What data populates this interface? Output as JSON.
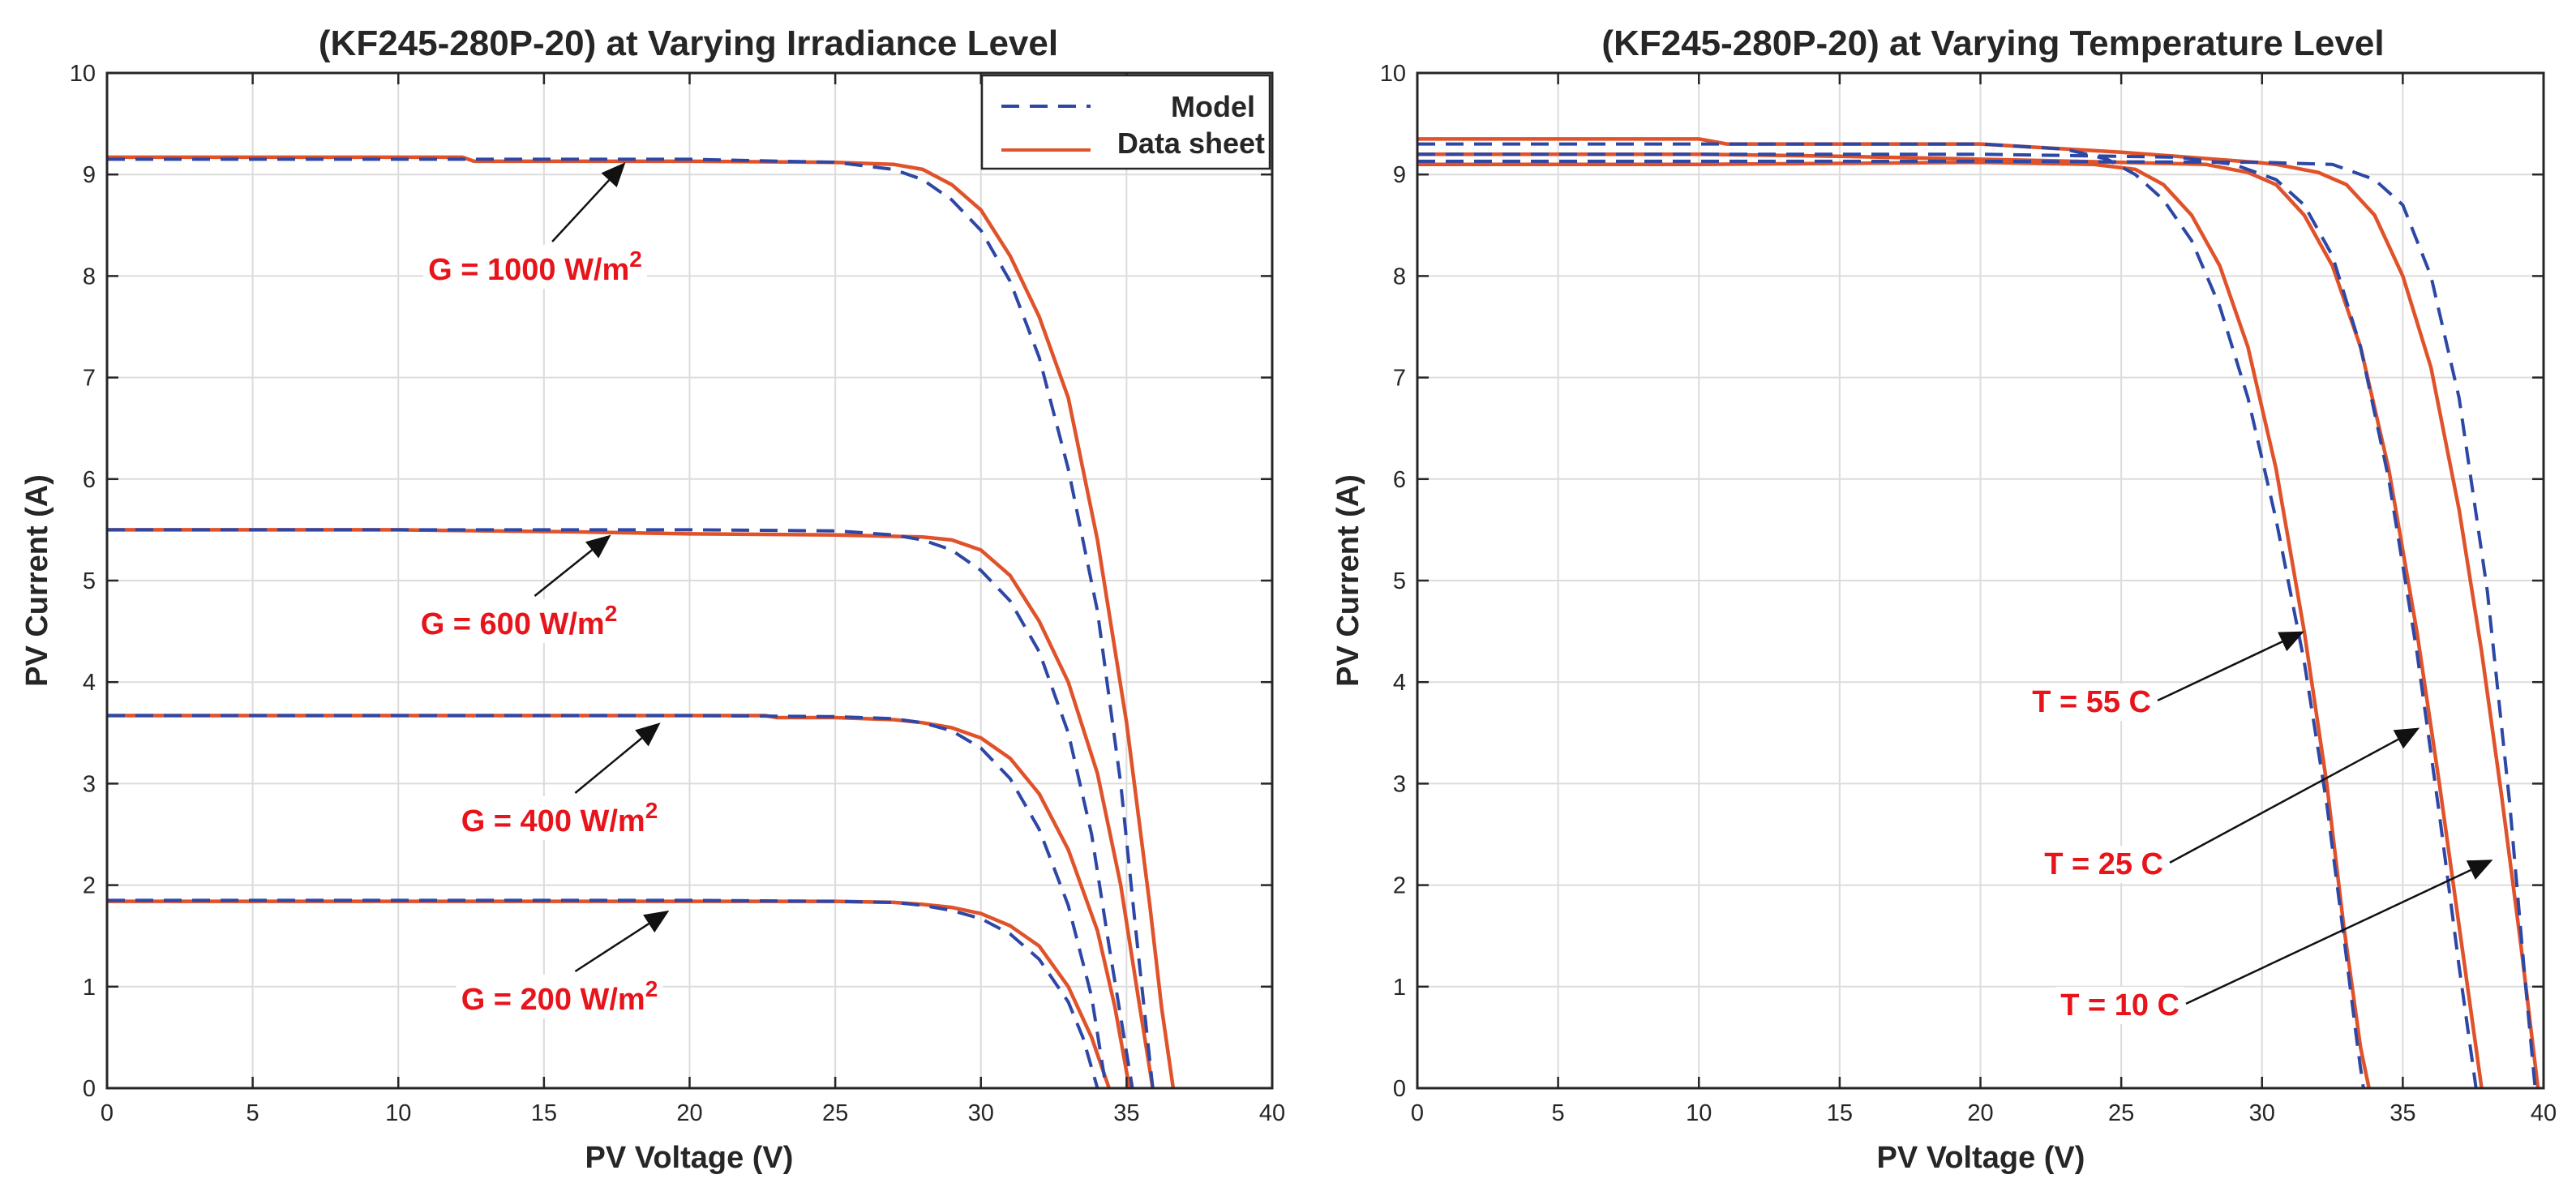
{
  "colors": {
    "model": "#2d47a6",
    "datasheet": "#e0522a",
    "annotation": "#e8141b",
    "axis": "#262626",
    "grid": "#dcdcdc"
  },
  "chart_data": [
    {
      "type": "line",
      "title": "(KF245-280P-20) at Varying Irradiance Level",
      "xlabel": "PV Voltage (V)",
      "ylabel": "PV Current (A)",
      "xlim": [
        0,
        40
      ],
      "ylim": [
        0,
        10
      ],
      "xticks": [
        "0",
        "5",
        "10",
        "15",
        "20",
        "25",
        "30",
        "35",
        "40"
      ],
      "yticks": [
        "0",
        "1",
        "2",
        "3",
        "4",
        "5",
        "6",
        "7",
        "8",
        "9",
        "10"
      ],
      "grid": true,
      "legend": {
        "placement": "top-right",
        "entries": [
          "Model",
          "Data sheet"
        ]
      },
      "annotations": [
        {
          "text": "G = 1000 W/m",
          "sup": "2",
          "target": [
            17.8,
            9.12
          ]
        },
        {
          "text": "G = 600 W/m",
          "sup": "2",
          "target": [
            17.3,
            5.45
          ]
        },
        {
          "text": "G = 400 W/m",
          "sup": "2",
          "target": [
            19.0,
            3.6
          ]
        },
        {
          "text": "G = 200 W/m",
          "sup": "2",
          "target": [
            19.3,
            1.75
          ]
        }
      ],
      "series": [
        {
          "group": "Model",
          "style": "dashed",
          "x": [
            0,
            10,
            20,
            25,
            27,
            28,
            29,
            30,
            31,
            32,
            33,
            34,
            34.8,
            35.3,
            35.9
          ],
          "y": [
            9.15,
            9.15,
            9.15,
            9.12,
            9.05,
            8.95,
            8.75,
            8.45,
            7.95,
            7.2,
            6.1,
            4.7,
            3.0,
            1.6,
            0
          ]
        },
        {
          "group": "Data sheet",
          "style": "solid",
          "x": [
            0,
            10,
            12.2,
            12.6,
            20,
            25,
            27,
            28,
            29,
            30,
            31,
            32,
            33,
            34,
            35,
            35.8,
            36.2,
            36.6
          ],
          "y": [
            9.17,
            9.17,
            9.17,
            9.13,
            9.13,
            9.12,
            9.1,
            9.05,
            8.9,
            8.65,
            8.2,
            7.6,
            6.8,
            5.4,
            3.6,
            1.8,
            0.8,
            0
          ]
        },
        {
          "group": "Model",
          "style": "dashed",
          "x": [
            0,
            10,
            20,
            25,
            27,
            28,
            29,
            30,
            31,
            32,
            33,
            33.8,
            34.4,
            35.2
          ],
          "y": [
            5.5,
            5.5,
            5.5,
            5.49,
            5.45,
            5.4,
            5.3,
            5.1,
            4.8,
            4.3,
            3.5,
            2.5,
            1.4,
            0
          ]
        },
        {
          "group": "Data sheet",
          "style": "solid",
          "x": [
            0,
            10,
            16,
            20,
            25,
            28,
            29,
            30,
            31,
            32,
            33,
            34,
            34.8,
            35.4,
            35.9
          ],
          "y": [
            5.5,
            5.5,
            5.48,
            5.46,
            5.45,
            5.43,
            5.4,
            5.3,
            5.05,
            4.6,
            4.0,
            3.1,
            2.0,
            0.9,
            0
          ]
        },
        {
          "group": "Model",
          "style": "dashed",
          "x": [
            0,
            10,
            20,
            25,
            27,
            28,
            29,
            30,
            31,
            32,
            33,
            33.8,
            34.3
          ],
          "y": [
            3.67,
            3.67,
            3.67,
            3.66,
            3.64,
            3.6,
            3.52,
            3.35,
            3.05,
            2.55,
            1.8,
            0.9,
            0
          ]
        },
        {
          "group": "Data sheet",
          "style": "solid",
          "x": [
            0,
            10,
            20,
            22.6,
            23,
            25,
            27,
            28,
            29,
            30,
            31,
            32,
            33,
            34,
            34.6,
            35.1
          ],
          "y": [
            3.67,
            3.67,
            3.67,
            3.67,
            3.65,
            3.65,
            3.63,
            3.6,
            3.55,
            3.45,
            3.25,
            2.9,
            2.35,
            1.55,
            0.8,
            0
          ]
        },
        {
          "group": "Model",
          "style": "dashed",
          "x": [
            0,
            10,
            20,
            25,
            27,
            28,
            29,
            30,
            31,
            32,
            33,
            33.5,
            34.0
          ],
          "y": [
            1.85,
            1.85,
            1.85,
            1.84,
            1.83,
            1.8,
            1.75,
            1.67,
            1.52,
            1.27,
            0.85,
            0.5,
            0
          ]
        },
        {
          "group": "Data sheet",
          "style": "solid",
          "x": [
            0,
            10,
            20,
            25,
            27,
            28,
            29,
            30,
            31,
            32,
            33,
            33.8,
            34.4
          ],
          "y": [
            1.84,
            1.84,
            1.84,
            1.84,
            1.83,
            1.81,
            1.78,
            1.72,
            1.6,
            1.4,
            1.0,
            0.5,
            0
          ]
        }
      ]
    },
    {
      "type": "line",
      "title": "(KF245-280P-20) at Varying Temperature Level",
      "xlabel": "PV Voltage (V)",
      "ylabel": "PV Current (A)",
      "xlim": [
        0,
        40
      ],
      "ylim": [
        0,
        10
      ],
      "xticks": [
        "0",
        "5",
        "10",
        "15",
        "20",
        "25",
        "30",
        "35",
        "40"
      ],
      "yticks": [
        "0",
        "1",
        "2",
        "3",
        "4",
        "5",
        "6",
        "7",
        "8",
        "9",
        "10"
      ],
      "grid": true,
      "annotations": [
        {
          "text": "T = 55 C",
          "target": [
            31.5,
            4.5
          ]
        },
        {
          "text": "T = 25 C",
          "target": [
            35.6,
            3.55
          ]
        },
        {
          "text": "T = 10 C",
          "target": [
            38.2,
            2.25
          ]
        }
      ],
      "series": [
        {
          "group": "Model",
          "style": "dashed",
          "x": [
            0,
            10,
            20,
            23,
            24.5,
            25.5,
            26.5,
            27.5,
            28.5,
            29.5,
            30.5,
            31.5,
            32.3,
            32.9,
            33.4,
            33.6
          ],
          "y": [
            9.3,
            9.3,
            9.3,
            9.25,
            9.15,
            9.0,
            8.75,
            8.35,
            7.7,
            6.8,
            5.6,
            4.2,
            2.8,
            1.5,
            0.4,
            0
          ]
        },
        {
          "group": "Data sheet",
          "style": "solid",
          "x": [
            0,
            10,
            20,
            24,
            25.5,
            26.5,
            27.5,
            28.5,
            29.5,
            30.5,
            31.5,
            32.3,
            32.9,
            33.5,
            33.8
          ],
          "y": [
            9.1,
            9.1,
            9.12,
            9.1,
            9.05,
            8.9,
            8.6,
            8.1,
            7.3,
            6.1,
            4.5,
            3.0,
            1.6,
            0.4,
            0
          ]
        },
        {
          "group": "Model",
          "style": "dashed",
          "x": [
            0,
            10,
            20,
            27,
            29,
            30.5,
            31.5,
            32.5,
            33.5,
            34.5,
            35.5,
            36.3,
            37.0,
            37.6
          ],
          "y": [
            9.2,
            9.2,
            9.2,
            9.17,
            9.1,
            8.95,
            8.7,
            8.2,
            7.3,
            6.0,
            4.3,
            2.7,
            1.2,
            0
          ]
        },
        {
          "group": "Data sheet",
          "style": "solid",
          "x": [
            0,
            10,
            15,
            20,
            25,
            28,
            29.5,
            30.5,
            31.5,
            32.5,
            33.5,
            34.5,
            35.5,
            36.3,
            37.0,
            37.5,
            37.8
          ],
          "y": [
            9.2,
            9.2,
            9.18,
            9.15,
            9.12,
            9.1,
            9.02,
            8.9,
            8.6,
            8.1,
            7.3,
            6.1,
            4.5,
            3.0,
            1.6,
            0.6,
            0
          ]
        },
        {
          "group": "Model",
          "style": "dashed",
          "x": [
            0,
            10,
            20,
            30,
            32.5,
            34,
            35,
            36,
            37,
            38,
            38.8,
            39.3,
            39.7
          ],
          "y": [
            9.13,
            9.13,
            9.13,
            9.12,
            9.1,
            8.95,
            8.7,
            8.0,
            6.8,
            4.9,
            2.8,
            1.2,
            0
          ]
        },
        {
          "group": "Data sheet",
          "style": "solid",
          "x": [
            0,
            10,
            11,
            20,
            25,
            29.8,
            30.5,
            32,
            33,
            34,
            35,
            36,
            37,
            37.8,
            38.5,
            39.2,
            39.8
          ],
          "y": [
            9.35,
            9.35,
            9.3,
            9.3,
            9.22,
            9.12,
            9.1,
            9.02,
            8.9,
            8.6,
            8.0,
            7.1,
            5.7,
            4.3,
            2.9,
            1.4,
            0
          ]
        }
      ]
    }
  ]
}
